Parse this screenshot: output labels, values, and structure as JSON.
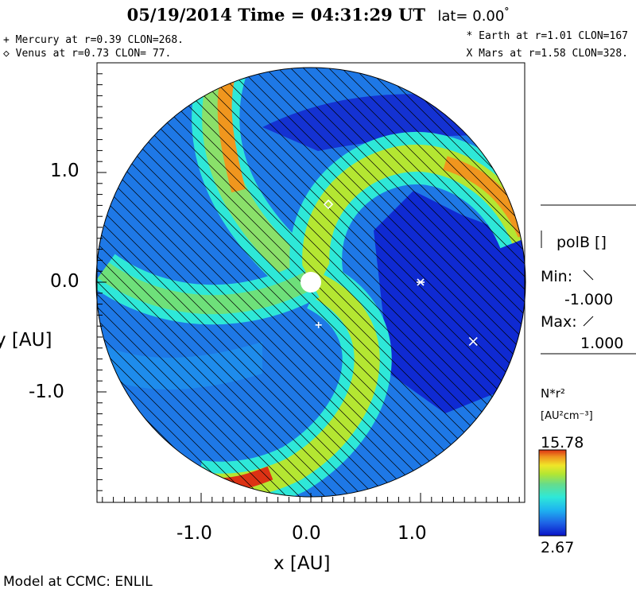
{
  "chart_data": {
    "type": "heatmap",
    "title": "05/19/2014 Time = 04:31:29 UT",
    "latitude_label": "lat= 0.00",
    "latitude_degree": "°",
    "xlabel": "x [AU]",
    "ylabel": "y [AU]",
    "xlim": [
      -2.0,
      2.0
    ],
    "ylim": [
      -2.0,
      2.0
    ],
    "x_ticks": [
      "-1.0",
      "0.0",
      "1.0"
    ],
    "y_ticks": [
      "1.0",
      "0.0",
      "-1.0"
    ],
    "x_tick_values": [
      -1.0,
      0.0,
      1.0
    ],
    "y_tick_values": [
      1.0,
      0.0,
      -1.0
    ],
    "planets": [
      {
        "name": "Mercury",
        "marker": "+",
        "r": 0.39,
        "clon": 268,
        "label": "+ Mercury at r=0.39 CLON=268."
      },
      {
        "name": "Venus",
        "marker": "◇",
        "r": 0.73,
        "clon": 77,
        "label": "◇ Venus at r=0.73 CLON= 77."
      },
      {
        "name": "Earth",
        "marker": "*",
        "r": 1.01,
        "clon": 167,
        "label": "* Earth at r=1.01 CLON=167"
      },
      {
        "name": "Mars",
        "marker": "X",
        "r": 1.58,
        "clon": 328,
        "label": "X Mars at r=1.58 CLON=328."
      }
    ],
    "planet_positions": [
      {
        "name": "Mercury",
        "x": 0.07,
        "y": -0.39
      },
      {
        "name": "Venus",
        "x": 0.16,
        "y": 0.71
      },
      {
        "name": "Earth",
        "x": 1.0,
        "y": 0.0
      },
      {
        "name": "Mars",
        "x": 1.48,
        "y": -0.54
      }
    ],
    "polarity": {
      "label": "polB []",
      "min_label": "Min:",
      "min_value": "-1.000",
      "max_label": "Max:",
      "max_value": "1.000"
    },
    "colorbar": {
      "quantity": "N*r²",
      "units": "[AU²cm⁻³]",
      "max": "15.78",
      "min": "2.67",
      "colors": [
        "#0a14c8",
        "#1e64e6",
        "#1eb4f0",
        "#2ee8d8",
        "#66dc8c",
        "#b4e632",
        "#f0e628",
        "#f0961e",
        "#dc3214"
      ]
    },
    "colors": {
      "background": "#0a14c8",
      "low": "#1e64e6",
      "mid": "#1eb4f0",
      "cyan": "#2ee8d8",
      "green": "#6ee07a",
      "yellow": "#e6e628",
      "orange": "#f0961e",
      "red": "#dc3214"
    }
  },
  "footer": "Model at CCMC: ENLIL"
}
